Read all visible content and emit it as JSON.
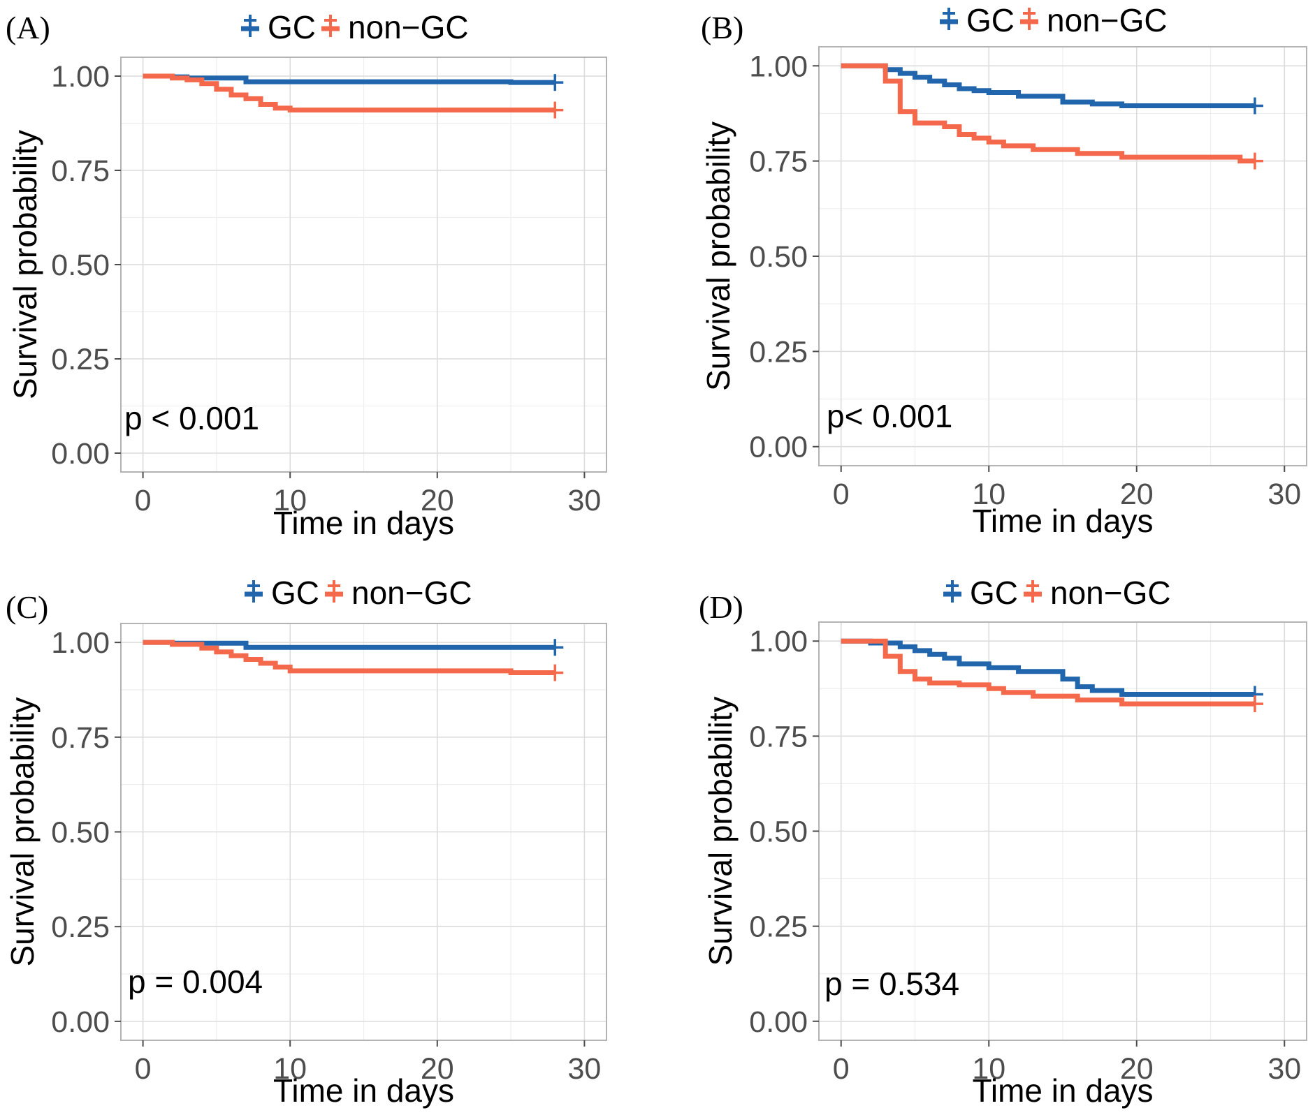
{
  "colors": {
    "gc": "#2166ac",
    "non_gc": "#f4694b"
  },
  "chart_data": [
    {
      "type": "line",
      "panel": "(A)",
      "legend": [
        "GC",
        "non−GC"
      ],
      "xlabel": "Time in days",
      "ylabel": "Survival probability",
      "xlim": [
        -1.5,
        31.5
      ],
      "ylim": [
        -0.05,
        1.05
      ],
      "xticks": [
        "0",
        "10",
        "20",
        "30"
      ],
      "yticks": [
        "0.00",
        "0.25",
        "0.50",
        "0.75",
        "1.00"
      ],
      "annotation": "p < 0.001",
      "series": [
        {
          "name": "GC",
          "x": [
            0,
            2,
            3,
            7,
            25,
            28
          ],
          "y": [
            1.0,
            0.998,
            0.995,
            0.985,
            0.983,
            0.983
          ]
        },
        {
          "name": "non−GC",
          "x": [
            0,
            2,
            3,
            4,
            5,
            6,
            7,
            8,
            9,
            10,
            28
          ],
          "y": [
            1.0,
            0.995,
            0.99,
            0.98,
            0.965,
            0.95,
            0.94,
            0.925,
            0.915,
            0.91,
            0.91
          ]
        }
      ]
    },
    {
      "type": "line",
      "panel": "(B)",
      "legend": [
        "GC",
        "non−GC"
      ],
      "xlabel": "Time in days",
      "ylabel": "Survival probability",
      "xlim": [
        -1.5,
        31.5
      ],
      "ylim": [
        -0.05,
        1.05
      ],
      "xticks": [
        "0",
        "10",
        "20",
        "30"
      ],
      "yticks": [
        "0.00",
        "0.25",
        "0.50",
        "0.75",
        "1.00"
      ],
      "annotation": "p< 0.001",
      "series": [
        {
          "name": "GC",
          "x": [
            0,
            3,
            4,
            5,
            6,
            7,
            8,
            9,
            10,
            12,
            15,
            17,
            19,
            28
          ],
          "y": [
            1.0,
            0.99,
            0.98,
            0.97,
            0.96,
            0.95,
            0.94,
            0.935,
            0.93,
            0.92,
            0.905,
            0.9,
            0.895,
            0.895
          ]
        },
        {
          "name": "non−GC",
          "x": [
            0,
            3,
            4,
            5,
            7,
            8,
            9,
            10,
            11,
            13,
            16,
            19,
            27,
            28
          ],
          "y": [
            1.0,
            0.96,
            0.88,
            0.85,
            0.84,
            0.82,
            0.81,
            0.8,
            0.79,
            0.78,
            0.77,
            0.76,
            0.75,
            0.75
          ]
        }
      ]
    },
    {
      "type": "line",
      "panel": "(C)",
      "legend": [
        "GC",
        "non−GC"
      ],
      "xlabel": "Time in days",
      "ylabel": "Survival probability",
      "xlim": [
        -1.5,
        31.5
      ],
      "ylim": [
        -0.05,
        1.05
      ],
      "xticks": [
        "0",
        "10",
        "20",
        "30"
      ],
      "yticks": [
        "0.00",
        "0.25",
        "0.50",
        "0.75",
        "1.00"
      ],
      "annotation": "p = 0.004",
      "series": [
        {
          "name": "GC",
          "x": [
            0,
            2,
            7,
            28
          ],
          "y": [
            1.0,
            0.998,
            0.987,
            0.987
          ]
        },
        {
          "name": "non−GC",
          "x": [
            0,
            2,
            4,
            5,
            6,
            7,
            8,
            9,
            10,
            25,
            28
          ],
          "y": [
            1.0,
            0.995,
            0.985,
            0.975,
            0.965,
            0.955,
            0.945,
            0.935,
            0.925,
            0.92,
            0.92
          ]
        }
      ]
    },
    {
      "type": "line",
      "panel": "(D)",
      "legend": [
        "GC",
        "non−GC"
      ],
      "xlabel": "Time in days",
      "ylabel": "Survival probability",
      "xlim": [
        -1.5,
        31.5
      ],
      "ylim": [
        -0.05,
        1.05
      ],
      "xticks": [
        "0",
        "10",
        "20",
        "30"
      ],
      "yticks": [
        "0.00",
        "0.25",
        "0.50",
        "0.75",
        "1.00"
      ],
      "annotation": "p =  0.534",
      "series": [
        {
          "name": "GC",
          "x": [
            0,
            2,
            4,
            5,
            6,
            7,
            8,
            10,
            12,
            15,
            16,
            17,
            19,
            28
          ],
          "y": [
            1.0,
            0.995,
            0.985,
            0.975,
            0.965,
            0.955,
            0.94,
            0.93,
            0.92,
            0.9,
            0.88,
            0.87,
            0.86,
            0.86
          ]
        },
        {
          "name": "non−GC",
          "x": [
            0,
            3,
            4,
            5,
            6,
            8,
            10,
            11,
            13,
            16,
            19,
            28
          ],
          "y": [
            1.0,
            0.96,
            0.92,
            0.9,
            0.89,
            0.885,
            0.875,
            0.865,
            0.855,
            0.845,
            0.835,
            0.835
          ]
        }
      ]
    }
  ]
}
